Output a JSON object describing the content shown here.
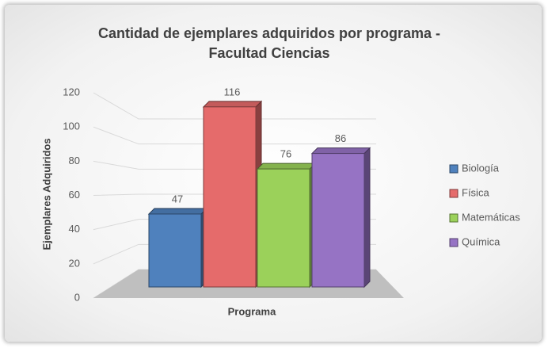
{
  "chart_data": {
    "type": "bar",
    "title": "Cantidad de ejemplares adquiridos por programa - Facultad Ciencias",
    "y_label": "Ejemplares Adquiridos",
    "x_label": "Programa",
    "series": [
      {
        "name": "Biología",
        "color": "#4f81bd",
        "values": [
          47
        ]
      },
      {
        "name": "Física",
        "color": "#e56b6b",
        "values": [
          116
        ]
      },
      {
        "name": "Matemáticas",
        "color": "#9bd15a",
        "values": [
          76
        ]
      },
      {
        "name": "Química",
        "color": "#9673c4",
        "values": [
          86
        ]
      }
    ],
    "ylim": [
      0,
      120
    ],
    "yticks": [
      0,
      20,
      40,
      60,
      80,
      100,
      120
    ],
    "grid": true,
    "legend": "right"
  }
}
